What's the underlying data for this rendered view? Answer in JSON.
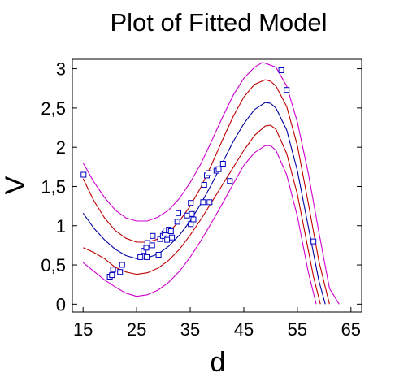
{
  "chart_data": {
    "type": "scatter",
    "title": "Plot of Fitted Model",
    "xlabel": "d",
    "ylabel": "V",
    "xlim": [
      13,
      67
    ],
    "ylim": [
      -0.1,
      3.12
    ],
    "x_ticks": [
      15,
      25,
      35,
      45,
      55,
      65
    ],
    "x_tick_labels": [
      "15",
      "25",
      "35",
      "45",
      "55",
      "65"
    ],
    "y_ticks": [
      0,
      0.5,
      1,
      1.5,
      2,
      2.5,
      3
    ],
    "y_tick_labels": [
      "0",
      "0,5",
      "1",
      "1,5",
      "2",
      "2,5",
      "3"
    ],
    "grid": false,
    "points": [
      [
        15.1,
        1.65
      ],
      [
        20.0,
        0.35
      ],
      [
        20.4,
        0.37
      ],
      [
        20.6,
        0.44
      ],
      [
        21.9,
        0.41
      ],
      [
        22.3,
        0.5
      ],
      [
        25.7,
        0.6
      ],
      [
        26.3,
        0.68
      ],
      [
        26.8,
        0.72
      ],
      [
        26.9,
        0.6
      ],
      [
        27.0,
        0.78
      ],
      [
        27.9,
        0.75
      ],
      [
        28.0,
        0.87
      ],
      [
        29.1,
        0.63
      ],
      [
        29.4,
        0.83
      ],
      [
        29.9,
        0.87
      ],
      [
        30.2,
        0.9
      ],
      [
        30.4,
        0.94
      ],
      [
        30.7,
        0.82
      ],
      [
        31.0,
        0.95
      ],
      [
        31.4,
        0.93
      ],
      [
        31.6,
        0.85
      ],
      [
        32.6,
        1.05
      ],
      [
        32.8,
        1.16
      ],
      [
        34.4,
        1.13
      ],
      [
        35.1,
        1.29
      ],
      [
        35.3,
        1.15
      ],
      [
        35.1,
        1.02
      ],
      [
        35.6,
        1.08
      ],
      [
        37.4,
        1.3
      ],
      [
        37.6,
        1.52
      ],
      [
        38.1,
        1.64
      ],
      [
        38.4,
        1.67
      ],
      [
        38.6,
        1.3
      ],
      [
        39.9,
        1.7
      ],
      [
        40.3,
        1.72
      ],
      [
        41.1,
        1.79
      ],
      [
        42.4,
        1.57
      ],
      [
        52.0,
        2.98
      ],
      [
        53.0,
        2.73
      ],
      [
        58.0,
        0.8
      ]
    ],
    "series": [
      {
        "role": "fit",
        "color": "#0000a0",
        "x": [
          15,
          17,
          19,
          21,
          23,
          25,
          27,
          29,
          31,
          33,
          35,
          37,
          39,
          41,
          43,
          45,
          47,
          49,
          50,
          51,
          53,
          55,
          57,
          59,
          60.2
        ],
        "y": [
          1.16,
          0.97,
          0.82,
          0.7,
          0.62,
          0.58,
          0.59,
          0.64,
          0.74,
          0.88,
          1.06,
          1.28,
          1.53,
          1.8,
          2.07,
          2.3,
          2.48,
          2.57,
          2.56,
          2.5,
          2.22,
          1.7,
          1.0,
          0.3,
          0.0
        ]
      },
      {
        "role": "confidence-upper",
        "color": "#c00000",
        "x": [
          15,
          17,
          19,
          21,
          23,
          25,
          27,
          29,
          31,
          33,
          35,
          37,
          39,
          41,
          43,
          45,
          47,
          49,
          50,
          51,
          53,
          55,
          57,
          59,
          61.0
        ],
        "y": [
          1.6,
          1.32,
          1.1,
          0.94,
          0.84,
          0.79,
          0.79,
          0.83,
          0.92,
          1.06,
          1.25,
          1.49,
          1.78,
          2.09,
          2.39,
          2.64,
          2.8,
          2.86,
          2.84,
          2.78,
          2.52,
          2.02,
          1.3,
          0.55,
          0.0
        ]
      },
      {
        "role": "confidence-lower",
        "color": "#c00000",
        "x": [
          15,
          17,
          19,
          21,
          23,
          25,
          27,
          29,
          31,
          33,
          35,
          37,
          39,
          41,
          43,
          45,
          47,
          49,
          50,
          51,
          53,
          55,
          57,
          58,
          59.3
        ],
        "y": [
          0.72,
          0.66,
          0.58,
          0.47,
          0.41,
          0.38,
          0.4,
          0.46,
          0.56,
          0.7,
          0.88,
          1.08,
          1.3,
          1.52,
          1.74,
          1.96,
          2.15,
          2.27,
          2.28,
          2.23,
          1.92,
          1.4,
          0.7,
          0.35,
          0.0
        ]
      },
      {
        "role": "prediction-upper",
        "color": "#d000d0",
        "x": [
          15,
          17,
          19,
          21,
          23,
          25,
          27,
          29,
          31,
          33,
          35,
          37,
          39,
          41,
          43,
          45,
          47,
          48.5,
          49,
          51,
          53,
          55,
          57,
          59,
          61,
          62.8
        ],
        "y": [
          1.8,
          1.56,
          1.36,
          1.2,
          1.1,
          1.06,
          1.06,
          1.11,
          1.2,
          1.35,
          1.55,
          1.79,
          2.08,
          2.38,
          2.66,
          2.88,
          3.02,
          3.08,
          3.07,
          3.02,
          2.78,
          2.32,
          1.68,
          0.92,
          0.2,
          0.0
        ]
      },
      {
        "role": "prediction-lower",
        "color": "#d000d0",
        "x": [
          15,
          17,
          19,
          21,
          23,
          25,
          27,
          29,
          31,
          33,
          35,
          37,
          39,
          41,
          43,
          45,
          47,
          49,
          50,
          51,
          53,
          55,
          57,
          58.5
        ],
        "y": [
          0.53,
          0.42,
          0.31,
          0.22,
          0.14,
          0.1,
          0.12,
          0.18,
          0.28,
          0.42,
          0.6,
          0.81,
          1.04,
          1.28,
          1.53,
          1.77,
          1.93,
          2.02,
          2.02,
          1.96,
          1.65,
          1.12,
          0.42,
          0.0
        ]
      }
    ]
  }
}
